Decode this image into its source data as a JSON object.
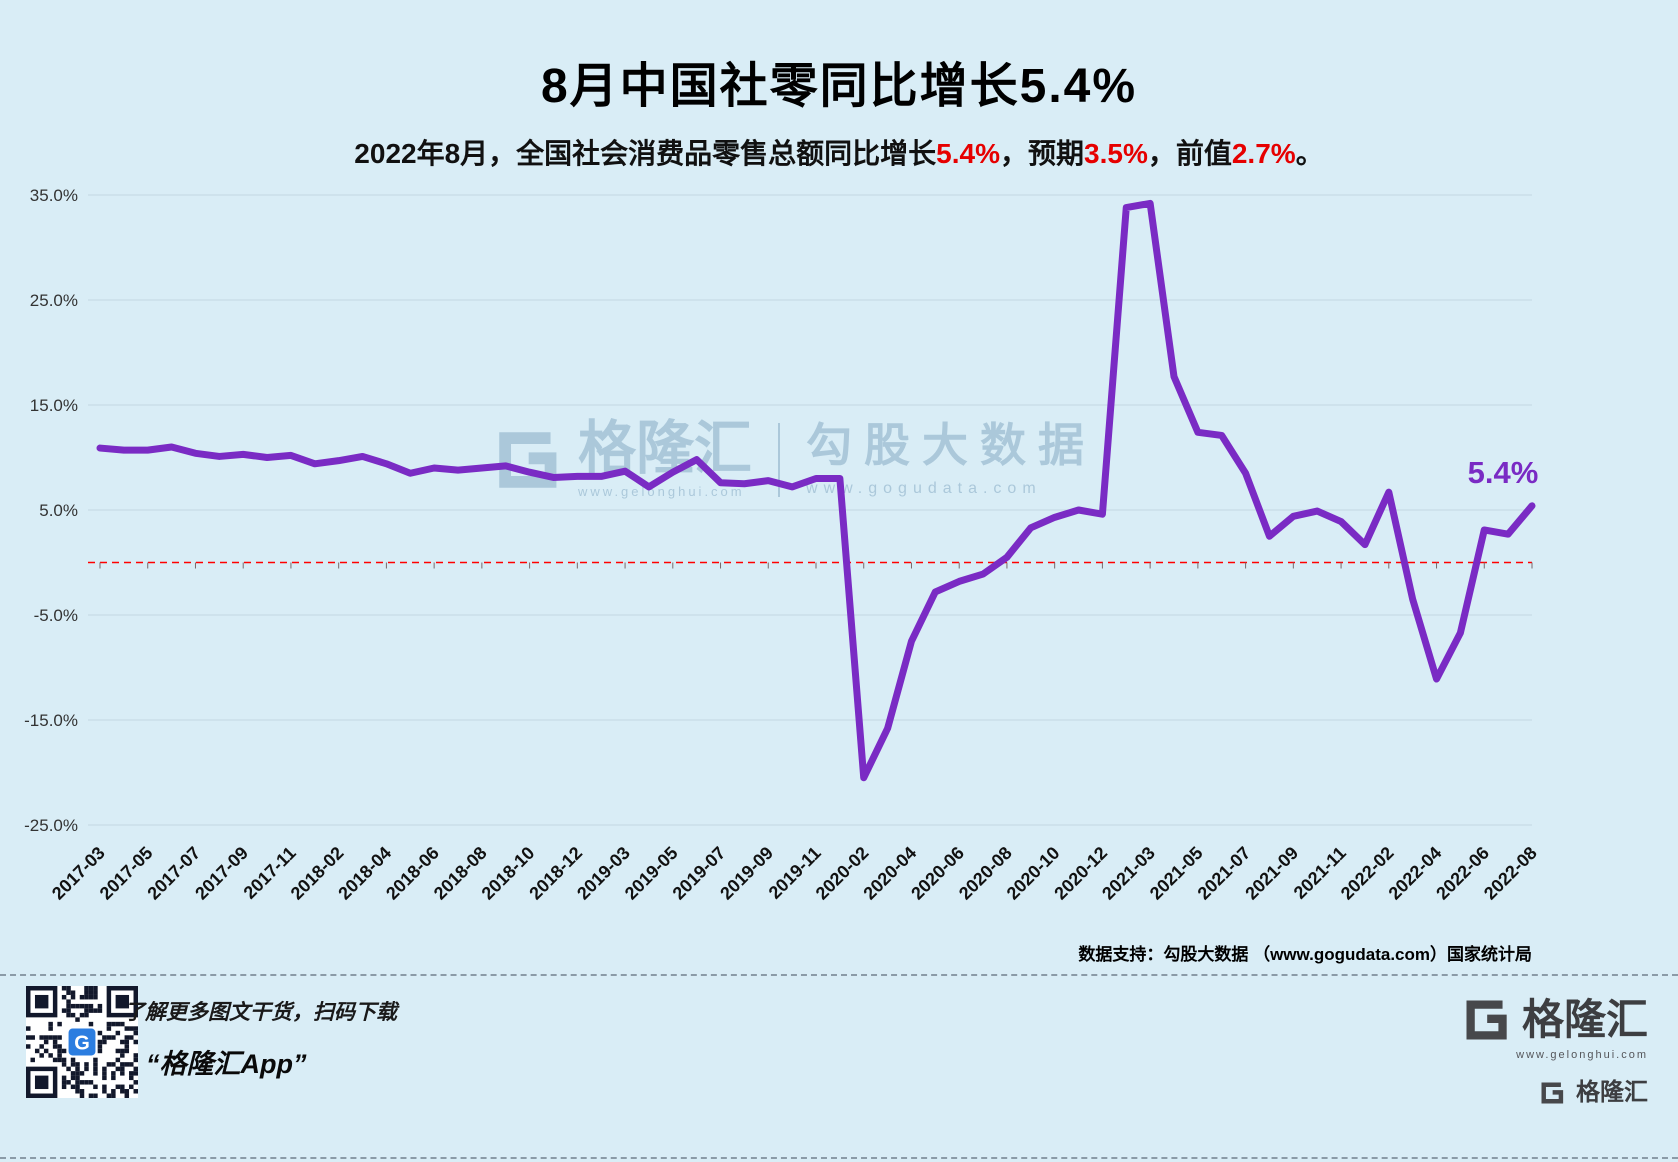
{
  "title": "8月中国社零同比增长5.4%",
  "subtitle": {
    "parts": [
      {
        "text": "2022年8月，全国社会消费品零售总额同比增长",
        "color": "default"
      },
      {
        "text": "5.4%",
        "color": "red"
      },
      {
        "text": "，预期",
        "color": "default"
      },
      {
        "text": "3.5%",
        "color": "red"
      },
      {
        "text": "，前值",
        "color": "default"
      },
      {
        "text": "2.7%",
        "color": "red"
      },
      {
        "text": "。",
        "color": "default"
      }
    ]
  },
  "chart_data": {
    "type": "line",
    "title": "8月中国社零同比增长5.4%",
    "xlabel": "",
    "ylabel": "",
    "grid": true,
    "legend": "none",
    "ylim": [
      -25,
      35
    ],
    "yticks": [
      35,
      25,
      15,
      5,
      -5,
      -15,
      -25
    ],
    "ytick_labels": [
      "35.0%",
      "25.0%",
      "15.0%",
      "5.0%",
      "-5.0%",
      "-15.0%",
      "-25.0%"
    ],
    "zero_line": {
      "value": 0,
      "style": "dashed",
      "color": "#ff0000"
    },
    "line_color": "#7a2bc4",
    "last_label": "5.4%",
    "x": [
      "2017-03",
      "2017-04",
      "2017-05",
      "2017-06",
      "2017-07",
      "2017-08",
      "2017-09",
      "2017-10",
      "2017-11",
      "2017-12",
      "2018-02",
      "2018-03",
      "2018-04",
      "2018-05",
      "2018-06",
      "2018-07",
      "2018-08",
      "2018-09",
      "2018-10",
      "2018-11",
      "2018-12",
      "2019-02",
      "2019-03",
      "2019-04",
      "2019-05",
      "2019-06",
      "2019-07",
      "2019-08",
      "2019-09",
      "2019-10",
      "2019-11",
      "2019-12",
      "2020-02",
      "2020-03",
      "2020-04",
      "2020-05",
      "2020-06",
      "2020-07",
      "2020-08",
      "2020-09",
      "2020-10",
      "2020-11",
      "2020-12",
      "2021-02",
      "2021-03",
      "2021-04",
      "2021-05",
      "2021-06",
      "2021-07",
      "2021-08",
      "2021-09",
      "2021-10",
      "2021-11",
      "2021-12",
      "2022-02",
      "2022-03",
      "2022-04",
      "2022-05",
      "2022-06",
      "2022-07",
      "2022-08"
    ],
    "values": [
      10.9,
      10.7,
      10.7,
      11.0,
      10.4,
      10.1,
      10.3,
      10.0,
      10.2,
      9.4,
      9.7,
      10.1,
      9.4,
      8.5,
      9.0,
      8.8,
      9.0,
      9.2,
      8.6,
      8.1,
      8.2,
      8.2,
      8.7,
      7.2,
      8.6,
      9.8,
      7.6,
      7.5,
      7.8,
      7.2,
      8.0,
      8.0,
      -20.5,
      -15.8,
      -7.5,
      -2.8,
      -1.8,
      -1.1,
      0.5,
      3.3,
      4.3,
      5.0,
      4.6,
      33.8,
      34.2,
      17.7,
      12.4,
      12.1,
      8.5,
      2.5,
      4.4,
      4.9,
      3.9,
      1.7,
      6.7,
      -3.5,
      -11.1,
      -6.7,
      3.1,
      2.7,
      5.4
    ],
    "xtick_labels": [
      "2017-03",
      "2017-05",
      "2017-07",
      "2017-09",
      "2017-11",
      "2018-02",
      "2018-04",
      "2018-06",
      "2018-08",
      "2018-10",
      "2018-12",
      "2019-03",
      "2019-05",
      "2019-07",
      "2019-09",
      "2019-11",
      "2020-02",
      "2020-04",
      "2020-06",
      "2020-08",
      "2020-10",
      "2020-12",
      "2021-03",
      "2021-05",
      "2021-07",
      "2021-09",
      "2021-11",
      "2022-02",
      "2022-04",
      "2022-06",
      "2022-08"
    ]
  },
  "watermark": {
    "left_name": "格隆汇",
    "left_url": "www.gelonghui.com",
    "right_name": "勾股大数据",
    "right_url": "www.gogudata.com"
  },
  "source_note": "数据支持：勾股大数据 （www.gogudata.com）国家统计局",
  "footer": {
    "qr_caption_line1": "了解更多图文干货，扫码下载",
    "qr_caption_line2": "“格隆汇App”",
    "brand": {
      "name": "格隆汇",
      "url": "www.gelonghui.com"
    }
  },
  "icons": {
    "gelonghui_logo": "square-G",
    "qr": "qr-code"
  },
  "colors": {
    "background": "#d9edf6",
    "line": "#7a2bc4",
    "highlight_red": "#e60000",
    "zero_line_red": "#ff0000"
  }
}
